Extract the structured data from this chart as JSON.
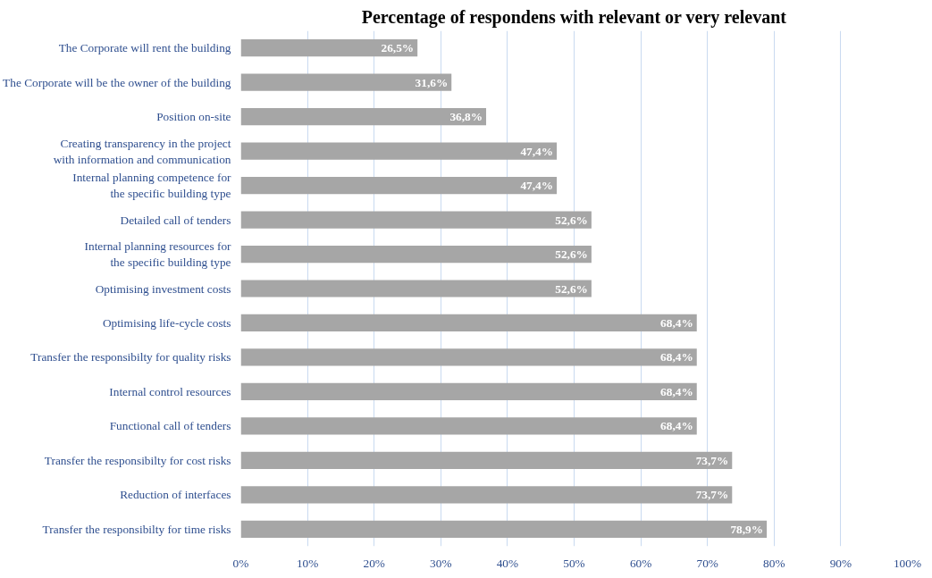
{
  "chart_data": {
    "type": "bar",
    "orientation": "horizontal",
    "title": "Percentage of respondens with relevant or very relevant",
    "categories": [
      "The Corporate will rent the building",
      "The Corporate will be the owner of the building",
      "Position on-site",
      "Creating transparency in the project\nwith information and communication",
      "Internal planning competence for\nthe specific building type",
      "Detailed call of tenders",
      "Internal planning resources for\nthe specific building type",
      "Optimising investment costs",
      "Optimising life-cycle costs",
      "Transfer the responsibilty for quality risks",
      "Internal control resources",
      "Functional call of tenders",
      "Transfer the responsibilty for cost risks",
      "Reduction of interfaces",
      "Transfer the responsibilty for time risks"
    ],
    "values": [
      26.5,
      31.6,
      36.8,
      47.4,
      47.4,
      52.6,
      52.6,
      52.6,
      68.4,
      68.4,
      68.4,
      68.4,
      73.7,
      73.7,
      78.9
    ],
    "value_labels": [
      "26,5%",
      "31,6%",
      "36,8%",
      "47,4%",
      "47,4%",
      "52,6%",
      "52,6%",
      "52,6%",
      "68,4%",
      "68,4%",
      "68,4%",
      "68,4%",
      "73,7%",
      "73,7%",
      "78,9%"
    ],
    "color": "#a6a6a6",
    "xlim": [
      0,
      100
    ],
    "xticks": [
      {
        "value": 0,
        "label": "0%"
      },
      {
        "value": 10,
        "label": "10%"
      },
      {
        "value": 20,
        "label": "20%"
      },
      {
        "value": 30,
        "label": "30%"
      },
      {
        "value": 40,
        "label": "40%"
      },
      {
        "value": 50,
        "label": "50%"
      },
      {
        "value": 60,
        "label": "60%"
      },
      {
        "value": 70,
        "label": "70%"
      },
      {
        "value": 80,
        "label": "80%"
      },
      {
        "value": 90,
        "label": "90%"
      },
      {
        "value": 100,
        "label": "100%"
      }
    ],
    "grid": "x"
  }
}
